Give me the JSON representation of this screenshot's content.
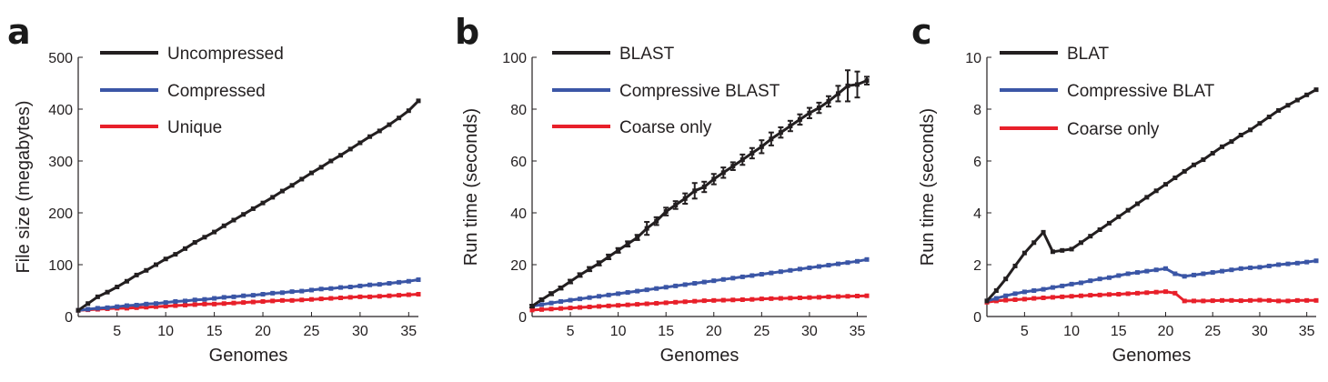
{
  "colors": {
    "black": "#231f20",
    "blue": "#3b56a6",
    "red": "#e8202a",
    "axis": "#231f20"
  },
  "chart_data": [
    {
      "panel": "a",
      "type": "line",
      "xlabel": "Genomes",
      "ylabel": "File size (megabytes)",
      "xlim": [
        1,
        36
      ],
      "ylim": [
        0,
        500
      ],
      "xticks": [
        5,
        10,
        15,
        20,
        25,
        30,
        35
      ],
      "yticks": [
        0,
        100,
        200,
        300,
        400,
        500
      ],
      "legend_position": "top-left",
      "series": [
        {
          "name": "Uncompressed",
          "color": "#231f20",
          "x": [
            1,
            2,
            3,
            4,
            5,
            6,
            7,
            8,
            9,
            10,
            11,
            12,
            13,
            14,
            15,
            16,
            17,
            18,
            19,
            20,
            21,
            22,
            23,
            24,
            25,
            26,
            27,
            28,
            29,
            30,
            31,
            32,
            33,
            34,
            35,
            36
          ],
          "y": [
            12,
            25,
            38,
            47,
            57,
            68,
            80,
            89,
            100,
            111,
            120,
            131,
            143,
            153,
            163,
            175,
            186,
            197,
            208,
            219,
            230,
            242,
            253,
            265,
            277,
            288,
            300,
            311,
            323,
            335,
            347,
            358,
            370,
            383,
            397,
            416
          ]
        },
        {
          "name": "Compressed",
          "color": "#3b56a6",
          "x": [
            1,
            2,
            3,
            4,
            5,
            6,
            7,
            8,
            9,
            10,
            11,
            12,
            13,
            14,
            15,
            16,
            17,
            18,
            19,
            20,
            21,
            22,
            23,
            24,
            25,
            26,
            27,
            28,
            29,
            30,
            31,
            32,
            33,
            34,
            35,
            36
          ],
          "y": [
            12,
            14,
            16,
            17,
            19,
            21,
            22,
            24,
            25,
            27,
            29,
            30,
            32,
            33,
            35,
            37,
            38,
            40,
            41,
            43,
            45,
            46,
            48,
            49,
            51,
            53,
            54,
            56,
            57,
            59,
            61,
            62,
            64,
            66,
            68,
            71
          ]
        },
        {
          "name": "Unique",
          "color": "#e8202a",
          "x": [
            1,
            2,
            3,
            4,
            5,
            6,
            7,
            8,
            9,
            10,
            11,
            12,
            13,
            14,
            15,
            16,
            17,
            18,
            19,
            20,
            21,
            22,
            23,
            24,
            25,
            26,
            27,
            28,
            29,
            30,
            31,
            32,
            33,
            34,
            35,
            36
          ],
          "y": [
            12,
            13,
            14,
            15,
            16,
            16,
            17,
            18,
            19,
            20,
            21,
            22,
            23,
            24,
            24,
            25,
            26,
            27,
            28,
            29,
            30,
            31,
            31,
            32,
            33,
            34,
            35,
            36,
            37,
            38,
            38,
            39,
            40,
            41,
            42,
            43
          ]
        }
      ]
    },
    {
      "panel": "b",
      "type": "line",
      "xlabel": "Genomes",
      "ylabel": "Run time (seconds)",
      "xlim": [
        1,
        36
      ],
      "ylim": [
        0,
        100
      ],
      "xticks": [
        5,
        10,
        15,
        20,
        25,
        30,
        35
      ],
      "yticks": [
        0,
        20,
        40,
        60,
        80,
        100
      ],
      "legend_position": "top-left",
      "series": [
        {
          "name": "BLAST",
          "color": "#231f20",
          "x": [
            1,
            2,
            3,
            4,
            5,
            6,
            7,
            8,
            9,
            10,
            11,
            12,
            13,
            14,
            15,
            16,
            17,
            18,
            19,
            20,
            21,
            22,
            23,
            24,
            25,
            26,
            27,
            28,
            29,
            30,
            31,
            32,
            33,
            34,
            35,
            36
          ],
          "y": [
            4,
            6.5,
            8.8,
            11,
            13.5,
            16,
            18.3,
            20.5,
            23,
            25.5,
            28,
            30.5,
            34,
            36.8,
            40.5,
            43,
            45.5,
            48.5,
            50,
            53,
            55.5,
            58,
            60.5,
            63,
            65.5,
            68.5,
            71,
            73.5,
            76,
            78.5,
            80.5,
            83,
            86,
            89,
            89.5,
            91
          ],
          "err": [
            0.5,
            0.5,
            0.6,
            0.6,
            0.7,
            0.7,
            0.8,
            0.8,
            0.9,
            0.9,
            1.0,
            1.0,
            2.5,
            1.5,
            1.5,
            1.5,
            2.0,
            3.0,
            2.0,
            2.0,
            2.0,
            1.5,
            2.0,
            2.0,
            2.5,
            2.5,
            2.0,
            2.0,
            2.0,
            2.0,
            2.0,
            2.0,
            3.0,
            6.0,
            5.0,
            1.5
          ]
        },
        {
          "name": "Compressive BLAST",
          "color": "#3b56a6",
          "x": [
            1,
            2,
            3,
            4,
            5,
            6,
            7,
            8,
            9,
            10,
            11,
            12,
            13,
            14,
            15,
            16,
            17,
            18,
            19,
            20,
            21,
            22,
            23,
            24,
            25,
            26,
            27,
            28,
            29,
            30,
            31,
            32,
            33,
            34,
            35,
            36
          ],
          "y": [
            4,
            4.6,
            5.2,
            5.8,
            6.3,
            6.8,
            7.3,
            7.8,
            8.3,
            8.8,
            9.3,
            9.8,
            10.3,
            10.8,
            11.3,
            11.8,
            12.3,
            12.8,
            13.3,
            13.8,
            14.3,
            14.8,
            15.3,
            15.8,
            16.3,
            16.8,
            17.3,
            17.8,
            18.3,
            18.8,
            19.3,
            19.8,
            20.3,
            20.8,
            21.3,
            22
          ]
        },
        {
          "name": "Coarse only",
          "color": "#e8202a",
          "x": [
            1,
            2,
            3,
            4,
            5,
            6,
            7,
            8,
            9,
            10,
            11,
            12,
            13,
            14,
            15,
            16,
            17,
            18,
            19,
            20,
            21,
            22,
            23,
            24,
            25,
            26,
            27,
            28,
            29,
            30,
            31,
            32,
            33,
            34,
            35,
            36
          ],
          "y": [
            2.5,
            2.7,
            2.9,
            3.1,
            3.3,
            3.5,
            3.7,
            3.9,
            4.1,
            4.3,
            4.5,
            4.7,
            4.9,
            5.1,
            5.3,
            5.5,
            5.7,
            5.9,
            6.1,
            6.2,
            6.3,
            6.4,
            6.5,
            6.6,
            6.8,
            6.9,
            7.0,
            7.1,
            7.2,
            7.3,
            7.4,
            7.6,
            7.7,
            7.8,
            7.9,
            8.0
          ]
        }
      ]
    },
    {
      "panel": "c",
      "type": "line",
      "xlabel": "Genomes",
      "ylabel": "Run time (seconds)",
      "xlim": [
        1,
        36
      ],
      "ylim": [
        0,
        10
      ],
      "xticks": [
        5,
        10,
        15,
        20,
        25,
        30,
        35
      ],
      "yticks": [
        0,
        2,
        4,
        6,
        8,
        10
      ],
      "legend_position": "top-left",
      "series": [
        {
          "name": "BLAT",
          "color": "#231f20",
          "x": [
            1,
            2,
            3,
            4,
            5,
            6,
            7,
            8,
            9,
            10,
            11,
            12,
            13,
            14,
            15,
            16,
            17,
            18,
            19,
            20,
            21,
            22,
            23,
            24,
            25,
            26,
            27,
            28,
            29,
            30,
            31,
            32,
            33,
            34,
            35,
            36
          ],
          "y": [
            0.6,
            1.0,
            1.45,
            1.95,
            2.45,
            2.85,
            3.25,
            2.5,
            2.55,
            2.6,
            2.85,
            3.1,
            3.35,
            3.6,
            3.85,
            4.1,
            4.35,
            4.6,
            4.85,
            5.1,
            5.35,
            5.6,
            5.85,
            6.05,
            6.3,
            6.55,
            6.75,
            7.0,
            7.2,
            7.45,
            7.7,
            7.95,
            8.15,
            8.35,
            8.55,
            8.75
          ]
        },
        {
          "name": "Compressive BLAT",
          "color": "#3b56a6",
          "x": [
            1,
            2,
            3,
            4,
            5,
            6,
            7,
            8,
            9,
            10,
            11,
            12,
            13,
            14,
            15,
            16,
            17,
            18,
            19,
            20,
            21,
            22,
            23,
            24,
            25,
            26,
            27,
            28,
            29,
            30,
            31,
            32,
            33,
            34,
            35,
            36
          ],
          "y": [
            0.6,
            0.7,
            0.8,
            0.88,
            0.95,
            1.0,
            1.05,
            1.12,
            1.18,
            1.25,
            1.3,
            1.38,
            1.45,
            1.5,
            1.58,
            1.65,
            1.7,
            1.75,
            1.8,
            1.85,
            1.65,
            1.55,
            1.6,
            1.65,
            1.7,
            1.75,
            1.8,
            1.85,
            1.88,
            1.9,
            1.95,
            2.0,
            2.03,
            2.06,
            2.1,
            2.15
          ]
        },
        {
          "name": "Coarse only",
          "color": "#e8202a",
          "x": [
            1,
            2,
            3,
            4,
            5,
            6,
            7,
            8,
            9,
            10,
            11,
            12,
            13,
            14,
            15,
            16,
            17,
            18,
            19,
            20,
            21,
            22,
            23,
            24,
            25,
            26,
            27,
            28,
            29,
            30,
            31,
            32,
            33,
            34,
            35,
            36
          ],
          "y": [
            0.55,
            0.6,
            0.63,
            0.65,
            0.67,
            0.7,
            0.72,
            0.74,
            0.76,
            0.78,
            0.8,
            0.82,
            0.83,
            0.85,
            0.86,
            0.88,
            0.9,
            0.92,
            0.94,
            0.96,
            0.9,
            0.6,
            0.6,
            0.6,
            0.61,
            0.62,
            0.62,
            0.61,
            0.62,
            0.63,
            0.62,
            0.6,
            0.6,
            0.62,
            0.62,
            0.62
          ]
        }
      ]
    }
  ]
}
